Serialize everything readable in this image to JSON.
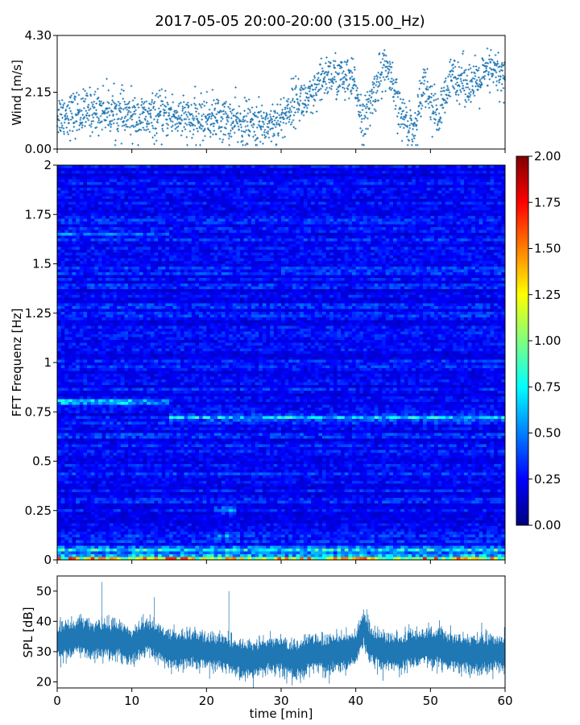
{
  "title": "2017-05-05 20:00-20:00 (315.00_Hz)",
  "colors": {
    "series": "#1f77b4",
    "axis": "#000000",
    "colormap": [
      "#00007f",
      "#0000ff",
      "#007fff",
      "#00ffff",
      "#7fff7f",
      "#ffff00",
      "#ff7f00",
      "#ff0000",
      "#7f0000"
    ]
  },
  "chart_data": [
    {
      "id": "wind",
      "type": "scatter",
      "ylabel": "Wind [m/s]",
      "xlim": [
        0,
        60
      ],
      "ylim": [
        0,
        4.3
      ],
      "yticks": [
        "0.00",
        "2.15",
        "4.30"
      ],
      "xticks": [
        0,
        10,
        20,
        30,
        40,
        50,
        60
      ],
      "grid": false,
      "series": [
        {
          "trend": [
            [
              0,
              1.3
            ],
            [
              3,
              1.35
            ],
            [
              6,
              1.5
            ],
            [
              9,
              1.25
            ],
            [
              12,
              1.15
            ],
            [
              15,
              1.3
            ],
            [
              18,
              1.05
            ],
            [
              21,
              1.2
            ],
            [
              24,
              1.0
            ],
            [
              27,
              0.9
            ],
            [
              30,
              1.1
            ],
            [
              32,
              1.9
            ],
            [
              34,
              1.8
            ],
            [
              36,
              2.8
            ],
            [
              38,
              2.7
            ],
            [
              40,
              2.4
            ],
            [
              41,
              0.9
            ],
            [
              43,
              2.6
            ],
            [
              44,
              3.2
            ],
            [
              46,
              1.3
            ],
            [
              48,
              0.7
            ],
            [
              49,
              2.7
            ],
            [
              51,
              1.1
            ],
            [
              53,
              2.8
            ],
            [
              56,
              2.4
            ],
            [
              58,
              3.0
            ],
            [
              60,
              2.7
            ]
          ],
          "points_per_minute": 30
        }
      ]
    },
    {
      "id": "spectrogram",
      "type": "heatmap",
      "ylabel": "FFT Frequenz [Hz]",
      "xlim": [
        0,
        60
      ],
      "ylim": [
        0,
        2
      ],
      "yticks": [
        "0",
        "0.25",
        "0.5",
        "0.75",
        "1",
        "1.25",
        "1.5",
        "1.75",
        "2"
      ],
      "colorbar": {
        "range": [
          0,
          2
        ],
        "ticks": [
          "0.00",
          "0.25",
          "0.50",
          "0.75",
          "1.00",
          "1.25",
          "1.50",
          "1.75",
          "2.00"
        ]
      },
      "bands": [
        {
          "freq": 0.01,
          "width": 0.02,
          "value": 1.6,
          "from": 0,
          "to": 60
        },
        {
          "freq": 0.05,
          "width": 0.04,
          "value": 0.8,
          "from": 0,
          "to": 60
        },
        {
          "freq": 0.12,
          "width": 0.04,
          "value": 0.6,
          "from": 21,
          "to": 24
        },
        {
          "freq": 0.25,
          "width": 0.06,
          "value": 0.55,
          "from": 21,
          "to": 24
        },
        {
          "freq": 0.8,
          "width": 0.03,
          "value": 0.85,
          "from": 0,
          "to": 15
        },
        {
          "freq": 0.72,
          "width": 0.03,
          "value": 0.75,
          "from": 15,
          "to": 60
        },
        {
          "freq": 1.65,
          "width": 0.02,
          "value": 0.5,
          "from": 0,
          "to": 15
        },
        {
          "freq": 1.47,
          "width": 0.03,
          "value": 0.45,
          "from": 30,
          "to": 60
        }
      ]
    },
    {
      "id": "spl",
      "type": "area",
      "ylabel": "SPL [dB]",
      "xlabel": "time [min]",
      "xlim": [
        0,
        60
      ],
      "ylim": [
        18,
        55
      ],
      "yticks": [
        20,
        30,
        40,
        50
      ],
      "xticks": [
        0,
        10,
        20,
        30,
        40,
        50,
        60
      ],
      "grid": false,
      "series": [
        {
          "mean": [
            [
              0,
              33
            ],
            [
              3,
              35
            ],
            [
              5,
              34
            ],
            [
              8,
              34
            ],
            [
              10,
              32
            ],
            [
              12,
              35
            ],
            [
              13,
              34
            ],
            [
              15,
              31
            ],
            [
              18,
              31
            ],
            [
              20,
              30
            ],
            [
              22,
              30
            ],
            [
              24,
              28
            ],
            [
              26,
              27
            ],
            [
              28,
              29
            ],
            [
              30,
              29
            ],
            [
              32,
              27
            ],
            [
              34,
              30
            ],
            [
              36,
              29
            ],
            [
              40,
              31
            ],
            [
              41,
              38
            ],
            [
              42,
              32
            ],
            [
              44,
              30
            ],
            [
              46,
              30
            ],
            [
              50,
              32
            ],
            [
              53,
              30
            ],
            [
              56,
              29
            ],
            [
              60,
              30
            ]
          ],
          "spikes": [
            [
              6,
              53
            ],
            [
              13,
              48
            ],
            [
              23,
              50
            ],
            [
              41.5,
              44
            ]
          ]
        }
      ]
    }
  ]
}
